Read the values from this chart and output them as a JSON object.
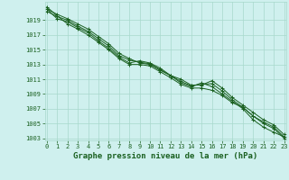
{
  "title": "Graphe pression niveau de la mer (hPa)",
  "background_color": "#cff0ee",
  "plot_bg_color": "#cff0ee",
  "grid_color": "#a8d8cc",
  "line_color": "#1a6020",
  "marker_color": "#1a6020",
  "x_min": 0,
  "x_max": 23,
  "y_min": 1003,
  "y_max": 1021,
  "y_ticks": [
    1003,
    1005,
    1007,
    1009,
    1011,
    1013,
    1015,
    1017,
    1019
  ],
  "series": [
    [
      1020.5,
      1019.8,
      1019.2,
      1018.5,
      1017.8,
      1016.8,
      1015.8,
      1014.5,
      1013.8,
      1013.2,
      1013.0,
      1012.2,
      1011.5,
      1010.5,
      1010.0,
      1010.5,
      1010.0,
      1009.0,
      1008.0,
      1007.0,
      1005.5,
      1004.5,
      1003.8,
      1003.2
    ],
    [
      1020.5,
      1019.2,
      1018.8,
      1018.0,
      1017.3,
      1016.2,
      1015.2,
      1014.0,
      1013.2,
      1013.5,
      1013.2,
      1012.5,
      1011.5,
      1011.0,
      1010.2,
      1010.2,
      1010.8,
      1009.8,
      1008.5,
      1007.5,
      1006.5,
      1005.5,
      1004.8,
      1003.5
    ],
    [
      1020.2,
      1019.5,
      1019.0,
      1018.2,
      1017.5,
      1016.5,
      1015.5,
      1014.2,
      1013.6,
      1013.3,
      1013.1,
      1012.3,
      1011.5,
      1010.7,
      1010.1,
      1010.3,
      1010.4,
      1009.4,
      1008.2,
      1007.2,
      1006.0,
      1005.0,
      1004.3,
      1003.0
    ],
    [
      1020.8,
      1019.6,
      1018.5,
      1017.8,
      1017.0,
      1016.0,
      1015.0,
      1013.8,
      1013.0,
      1013.0,
      1012.8,
      1012.0,
      1011.2,
      1010.3,
      1009.8,
      1009.8,
      1009.5,
      1008.8,
      1007.8,
      1007.2,
      1006.0,
      1005.2,
      1004.5,
      1003.2
    ]
  ],
  "font_color": "#1a6020",
  "title_fontsize": 6.5,
  "tick_fontsize": 5.0
}
